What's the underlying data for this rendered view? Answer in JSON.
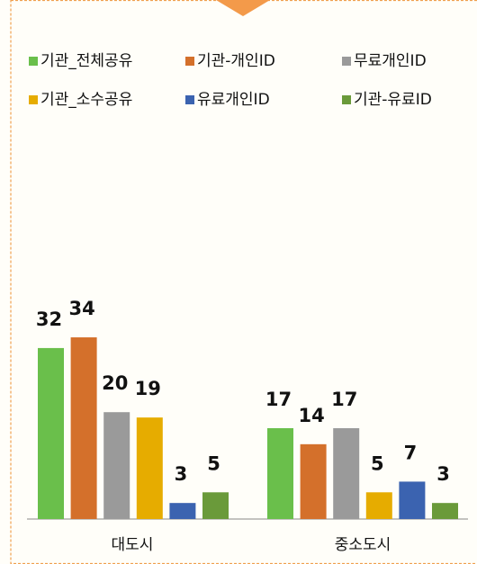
{
  "chart_data": {
    "type": "bar",
    "categories": [
      "대도시",
      "중소도시"
    ],
    "series": [
      {
        "name": "기관_전체공유",
        "color": "#6abf4b",
        "values": [
          32,
          17
        ]
      },
      {
        "name": "기관-개인ID",
        "color": "#d4702b",
        "values": [
          34,
          14
        ]
      },
      {
        "name": "무료개인ID",
        "color": "#9a9a9a",
        "values": [
          20,
          17
        ]
      },
      {
        "name": "기관_소수공유",
        "color": "#e6ac00",
        "values": [
          19,
          5
        ]
      },
      {
        "name": "유료개인ID",
        "color": "#3b63b0",
        "values": [
          3,
          7
        ]
      },
      {
        "name": "기관-유료ID",
        "color": "#6a9a3a",
        "values": [
          5,
          3
        ]
      }
    ]
  }
}
